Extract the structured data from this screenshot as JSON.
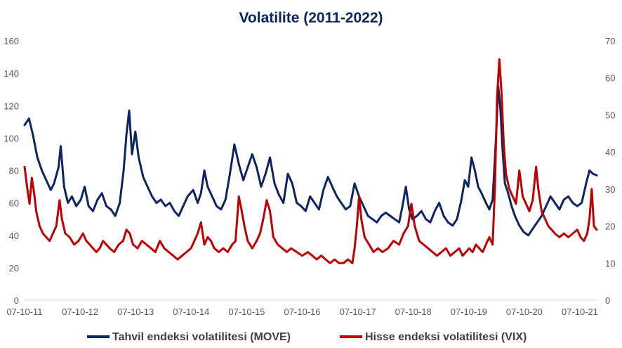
{
  "chart_data": {
    "type": "line",
    "title": "Volatilite (2011-2022)",
    "xlabel": "",
    "ylabel": "",
    "x_ticks": [
      "07-10-11",
      "07-10-12",
      "07-10-13",
      "07-10-14",
      "07-10-15",
      "07-10-16",
      "07-10-17",
      "07-10-18",
      "07-10-19",
      "07-10-20",
      "07-10-21"
    ],
    "x_range": [
      2011.77,
      2022.05
    ],
    "y_left": {
      "range": [
        0,
        160
      ],
      "ticks": [
        "0",
        "20",
        "40",
        "60",
        "80",
        "100",
        "120",
        "140",
        "160"
      ]
    },
    "y_right": {
      "range": [
        0,
        70
      ],
      "ticks": [
        "0",
        "10",
        "20",
        "30",
        "40",
        "50",
        "60",
        "70"
      ]
    },
    "grid": false,
    "legend_position": "bottom",
    "series": [
      {
        "name": "Tahvil endeksi volatilitesi (MOVE)",
        "color": "#0c2461",
        "axis": "left",
        "points": [
          [
            2011.77,
            108
          ],
          [
            2011.85,
            112
          ],
          [
            2011.92,
            102
          ],
          [
            2012.0,
            88
          ],
          [
            2012.08,
            80
          ],
          [
            2012.16,
            74
          ],
          [
            2012.24,
            68
          ],
          [
            2012.3,
            72
          ],
          [
            2012.38,
            82
          ],
          [
            2012.42,
            95
          ],
          [
            2012.48,
            70
          ],
          [
            2012.55,
            60
          ],
          [
            2012.62,
            64
          ],
          [
            2012.7,
            58
          ],
          [
            2012.78,
            62
          ],
          [
            2012.85,
            70
          ],
          [
            2012.92,
            58
          ],
          [
            2013.0,
            55
          ],
          [
            2013.08,
            62
          ],
          [
            2013.16,
            66
          ],
          [
            2013.24,
            58
          ],
          [
            2013.32,
            56
          ],
          [
            2013.4,
            52
          ],
          [
            2013.48,
            60
          ],
          [
            2013.55,
            80
          ],
          [
            2013.6,
            102
          ],
          [
            2013.65,
            117
          ],
          [
            2013.7,
            90
          ],
          [
            2013.76,
            104
          ],
          [
            2013.82,
            88
          ],
          [
            2013.9,
            76
          ],
          [
            2013.98,
            70
          ],
          [
            2014.06,
            64
          ],
          [
            2014.14,
            60
          ],
          [
            2014.22,
            62
          ],
          [
            2014.3,
            58
          ],
          [
            2014.38,
            60
          ],
          [
            2014.46,
            55
          ],
          [
            2014.54,
            52
          ],
          [
            2014.62,
            58
          ],
          [
            2014.7,
            64
          ],
          [
            2014.8,
            68
          ],
          [
            2014.88,
            60
          ],
          [
            2014.94,
            66
          ],
          [
            2015.0,
            80
          ],
          [
            2015.06,
            70
          ],
          [
            2015.14,
            64
          ],
          [
            2015.22,
            58
          ],
          [
            2015.3,
            56
          ],
          [
            2015.38,
            62
          ],
          [
            2015.46,
            78
          ],
          [
            2015.54,
            96
          ],
          [
            2015.62,
            84
          ],
          [
            2015.7,
            74
          ],
          [
            2015.78,
            82
          ],
          [
            2015.86,
            90
          ],
          [
            2015.94,
            82
          ],
          [
            2016.02,
            70
          ],
          [
            2016.1,
            78
          ],
          [
            2016.18,
            88
          ],
          [
            2016.26,
            72
          ],
          [
            2016.34,
            65
          ],
          [
            2016.42,
            60
          ],
          [
            2016.5,
            78
          ],
          [
            2016.58,
            72
          ],
          [
            2016.66,
            60
          ],
          [
            2016.74,
            58
          ],
          [
            2016.82,
            55
          ],
          [
            2016.9,
            64
          ],
          [
            2016.98,
            60
          ],
          [
            2017.06,
            56
          ],
          [
            2017.14,
            68
          ],
          [
            2017.22,
            76
          ],
          [
            2017.3,
            70
          ],
          [
            2017.38,
            64
          ],
          [
            2017.46,
            60
          ],
          [
            2017.54,
            56
          ],
          [
            2017.62,
            58
          ],
          [
            2017.7,
            72
          ],
          [
            2017.78,
            64
          ],
          [
            2017.86,
            58
          ],
          [
            2017.94,
            52
          ],
          [
            2018.02,
            50
          ],
          [
            2018.1,
            48
          ],
          [
            2018.18,
            52
          ],
          [
            2018.26,
            54
          ],
          [
            2018.34,
            52
          ],
          [
            2018.42,
            50
          ],
          [
            2018.5,
            48
          ],
          [
            2018.56,
            58
          ],
          [
            2018.62,
            70
          ],
          [
            2018.68,
            56
          ],
          [
            2018.74,
            50
          ],
          [
            2018.82,
            52
          ],
          [
            2018.9,
            55
          ],
          [
            2018.98,
            50
          ],
          [
            2019.06,
            48
          ],
          [
            2019.14,
            55
          ],
          [
            2019.22,
            60
          ],
          [
            2019.3,
            52
          ],
          [
            2019.38,
            48
          ],
          [
            2019.46,
            46
          ],
          [
            2019.54,
            50
          ],
          [
            2019.62,
            62
          ],
          [
            2019.68,
            74
          ],
          [
            2019.74,
            70
          ],
          [
            2019.8,
            88
          ],
          [
            2019.86,
            80
          ],
          [
            2019.92,
            70
          ],
          [
            2019.98,
            66
          ],
          [
            2020.06,
            60
          ],
          [
            2020.12,
            56
          ],
          [
            2020.18,
            62
          ],
          [
            2020.24,
            100
          ],
          [
            2020.28,
            132
          ],
          [
            2020.32,
            118
          ],
          [
            2020.36,
            92
          ],
          [
            2020.4,
            72
          ],
          [
            2020.46,
            66
          ],
          [
            2020.52,
            58
          ],
          [
            2020.58,
            52
          ],
          [
            2020.66,
            46
          ],
          [
            2020.74,
            42
          ],
          [
            2020.82,
            40
          ],
          [
            2020.9,
            44
          ],
          [
            2020.98,
            48
          ],
          [
            2021.06,
            52
          ],
          [
            2021.14,
            58
          ],
          [
            2021.22,
            64
          ],
          [
            2021.3,
            60
          ],
          [
            2021.38,
            56
          ],
          [
            2021.46,
            62
          ],
          [
            2021.54,
            64
          ],
          [
            2021.62,
            60
          ],
          [
            2021.7,
            58
          ],
          [
            2021.78,
            60
          ],
          [
            2021.86,
            72
          ],
          [
            2021.92,
            80
          ],
          [
            2021.98,
            78
          ],
          [
            2022.05,
            77
          ]
        ]
      },
      {
        "name": "Hisse endeksi volatilitesi (VIX)",
        "color": "#c00000",
        "axis": "right",
        "points": [
          [
            2011.77,
            36
          ],
          [
            2011.82,
            30
          ],
          [
            2011.86,
            26
          ],
          [
            2011.9,
            33
          ],
          [
            2011.94,
            29
          ],
          [
            2011.98,
            24
          ],
          [
            2012.04,
            20
          ],
          [
            2012.1,
            18
          ],
          [
            2012.16,
            17
          ],
          [
            2012.22,
            16
          ],
          [
            2012.28,
            18
          ],
          [
            2012.34,
            20
          ],
          [
            2012.4,
            27
          ],
          [
            2012.44,
            22
          ],
          [
            2012.5,
            18
          ],
          [
            2012.58,
            17
          ],
          [
            2012.66,
            15
          ],
          [
            2012.74,
            16
          ],
          [
            2012.82,
            18
          ],
          [
            2012.88,
            16
          ],
          [
            2012.94,
            15
          ],
          [
            2013.0,
            14
          ],
          [
            2013.06,
            13
          ],
          [
            2013.12,
            14
          ],
          [
            2013.18,
            16
          ],
          [
            2013.24,
            15
          ],
          [
            2013.3,
            14
          ],
          [
            2013.38,
            13
          ],
          [
            2013.46,
            15
          ],
          [
            2013.54,
            16
          ],
          [
            2013.6,
            19
          ],
          [
            2013.66,
            18
          ],
          [
            2013.72,
            15
          ],
          [
            2013.8,
            14
          ],
          [
            2013.88,
            16
          ],
          [
            2013.96,
            15
          ],
          [
            2014.04,
            14
          ],
          [
            2014.12,
            13
          ],
          [
            2014.2,
            16
          ],
          [
            2014.28,
            14
          ],
          [
            2014.36,
            13
          ],
          [
            2014.44,
            12
          ],
          [
            2014.52,
            11
          ],
          [
            2014.6,
            12
          ],
          [
            2014.68,
            13
          ],
          [
            2014.76,
            14
          ],
          [
            2014.82,
            16
          ],
          [
            2014.88,
            18
          ],
          [
            2014.94,
            21
          ],
          [
            2015.0,
            15
          ],
          [
            2015.06,
            17
          ],
          [
            2015.12,
            16
          ],
          [
            2015.18,
            14
          ],
          [
            2015.26,
            13
          ],
          [
            2015.34,
            14
          ],
          [
            2015.42,
            13
          ],
          [
            2015.5,
            15
          ],
          [
            2015.56,
            16
          ],
          [
            2015.62,
            28
          ],
          [
            2015.66,
            25
          ],
          [
            2015.72,
            20
          ],
          [
            2015.78,
            16
          ],
          [
            2015.86,
            14
          ],
          [
            2015.94,
            16
          ],
          [
            2016.0,
            18
          ],
          [
            2016.06,
            22
          ],
          [
            2016.12,
            27
          ],
          [
            2016.18,
            24
          ],
          [
            2016.24,
            17
          ],
          [
            2016.32,
            15
          ],
          [
            2016.4,
            14
          ],
          [
            2016.48,
            13
          ],
          [
            2016.56,
            14
          ],
          [
            2016.66,
            13
          ],
          [
            2016.76,
            12
          ],
          [
            2016.86,
            13
          ],
          [
            2016.94,
            12
          ],
          [
            2017.02,
            11
          ],
          [
            2017.1,
            12
          ],
          [
            2017.18,
            11
          ],
          [
            2017.26,
            10
          ],
          [
            2017.34,
            11
          ],
          [
            2017.42,
            10
          ],
          [
            2017.5,
            10
          ],
          [
            2017.58,
            11
          ],
          [
            2017.66,
            10
          ],
          [
            2017.7,
            14
          ],
          [
            2017.74,
            20
          ],
          [
            2017.78,
            28
          ],
          [
            2017.82,
            22
          ],
          [
            2017.88,
            17
          ],
          [
            2017.96,
            15
          ],
          [
            2018.04,
            13
          ],
          [
            2018.12,
            14
          ],
          [
            2018.2,
            13
          ],
          [
            2018.3,
            14
          ],
          [
            2018.4,
            16
          ],
          [
            2018.5,
            15
          ],
          [
            2018.58,
            18
          ],
          [
            2018.66,
            20
          ],
          [
            2018.72,
            26
          ],
          [
            2018.78,
            20
          ],
          [
            2018.86,
            16
          ],
          [
            2018.94,
            15
          ],
          [
            2019.02,
            14
          ],
          [
            2019.1,
            13
          ],
          [
            2019.18,
            12
          ],
          [
            2019.26,
            13
          ],
          [
            2019.34,
            14
          ],
          [
            2019.42,
            12
          ],
          [
            2019.5,
            13
          ],
          [
            2019.58,
            14
          ],
          [
            2019.64,
            12
          ],
          [
            2019.7,
            13
          ],
          [
            2019.76,
            14
          ],
          [
            2019.82,
            13
          ],
          [
            2019.88,
            15
          ],
          [
            2019.94,
            14
          ],
          [
            2020.0,
            13
          ],
          [
            2020.06,
            15
          ],
          [
            2020.12,
            17
          ],
          [
            2020.18,
            15
          ],
          [
            2020.22,
            30
          ],
          [
            2020.26,
            55
          ],
          [
            2020.3,
            65
          ],
          [
            2020.34,
            56
          ],
          [
            2020.38,
            42
          ],
          [
            2020.42,
            34
          ],
          [
            2020.48,
            30
          ],
          [
            2020.54,
            28
          ],
          [
            2020.6,
            26
          ],
          [
            2020.66,
            35
          ],
          [
            2020.72,
            28
          ],
          [
            2020.78,
            26
          ],
          [
            2020.84,
            24
          ],
          [
            2020.9,
            27
          ],
          [
            2020.96,
            36
          ],
          [
            2021.0,
            30
          ],
          [
            2021.06,
            24
          ],
          [
            2021.12,
            22
          ],
          [
            2021.18,
            20
          ],
          [
            2021.24,
            19
          ],
          [
            2021.3,
            18
          ],
          [
            2021.38,
            17
          ],
          [
            2021.46,
            18
          ],
          [
            2021.54,
            17
          ],
          [
            2021.62,
            18
          ],
          [
            2021.7,
            19
          ],
          [
            2021.76,
            17
          ],
          [
            2021.82,
            16
          ],
          [
            2021.88,
            18
          ],
          [
            2021.92,
            22
          ],
          [
            2021.96,
            30
          ],
          [
            2022.0,
            20
          ],
          [
            2022.05,
            19
          ]
        ]
      }
    ]
  }
}
